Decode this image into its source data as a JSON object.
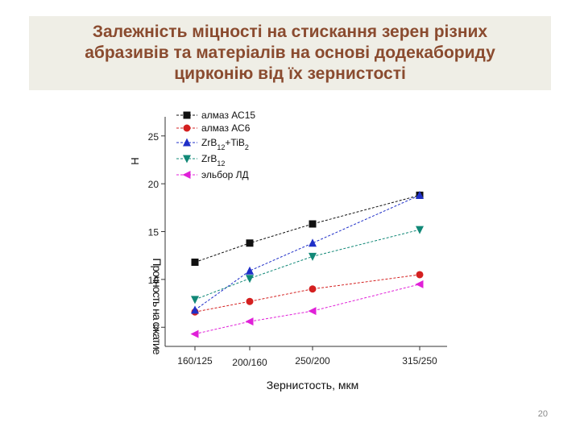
{
  "slide": {
    "title_lines": [
      "Залежність міцності на стискання зерен різних",
      "абразивів та матеріалів на основі додекабориду",
      "цирконію від їх зернистості"
    ],
    "page_number": "20"
  },
  "chart_data": {
    "type": "line",
    "categories": [
      "160/125",
      "200/160",
      "250/200",
      "315/250"
    ],
    "xlabel": "Зернистость, мкм",
    "ylabel": "Прочность на сжатие, Н",
    "ylabel_top": "Н",
    "ylabel_overlap": "Прочность на сжатие",
    "yticks": [
      5,
      10,
      15,
      20,
      25
    ],
    "ylim": [
      3,
      27
    ],
    "grid": false,
    "legend_position": "top-left",
    "series": [
      {
        "name": "алмаз АС15",
        "values": [
          11.8,
          13.8,
          15.8,
          18.8
        ],
        "color": "#111111",
        "marker": "square"
      },
      {
        "name": "алмаз АС6",
        "values": [
          6.6,
          7.7,
          9.0,
          10.5
        ],
        "color": "#d42020",
        "marker": "circle"
      },
      {
        "name_main": "ZrB",
        "name_sub1": "12",
        "name_mid": "+TiB",
        "name_sub2": "2",
        "values": [
          6.8,
          10.9,
          13.8,
          18.8
        ],
        "color": "#1f2fc8",
        "marker": "triangle-up"
      },
      {
        "name_main": "ZrB",
        "name_sub1": "12",
        "values": [
          7.9,
          10.1,
          12.4,
          15.2
        ],
        "color": "#118877",
        "marker": "triangle-down"
      },
      {
        "name": "эльбор ЛД",
        "values": [
          4.3,
          5.6,
          6.7,
          9.5
        ],
        "color": "#e020d8",
        "marker": "triangle-left"
      }
    ]
  }
}
